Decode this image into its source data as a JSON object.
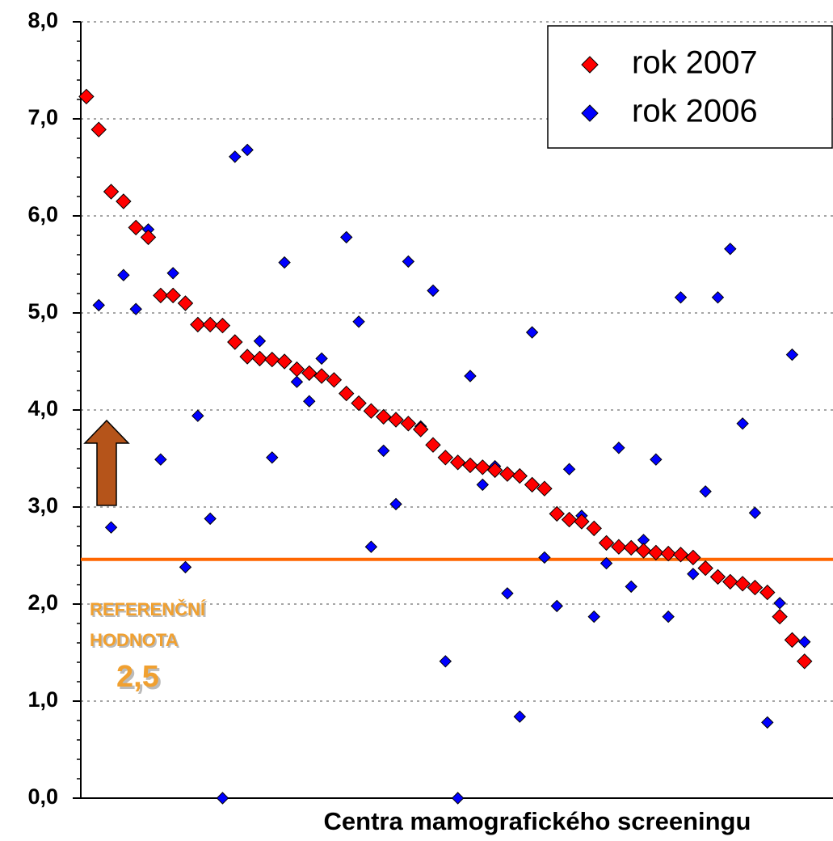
{
  "chart_data": {
    "type": "scatter",
    "x_label": "Centra mamografického screeningu",
    "x": [
      1,
      2,
      3,
      4,
      5,
      6,
      7,
      8,
      9,
      10,
      11,
      12,
      13,
      14,
      15,
      16,
      17,
      18,
      19,
      20,
      21,
      22,
      23,
      24,
      25,
      26,
      27,
      28,
      29,
      30,
      31,
      32,
      33,
      34,
      35,
      36,
      37,
      38,
      39,
      40,
      41,
      42,
      43,
      44,
      45,
      46,
      47,
      48,
      49,
      50,
      51,
      52,
      53,
      54,
      55,
      56,
      57,
      58,
      59
    ],
    "xlim": [
      0.55,
      61.3
    ],
    "ylim": [
      0,
      8
    ],
    "yticks": [
      {
        "value": 0,
        "label": "0,0"
      },
      {
        "value": 1,
        "label": "1,0"
      },
      {
        "value": 2,
        "label": "2,0"
      },
      {
        "value": 3,
        "label": "3,0"
      },
      {
        "value": 4,
        "label": "4,0"
      },
      {
        "value": 5,
        "label": "5,0"
      },
      {
        "value": 6,
        "label": "6,0"
      },
      {
        "value": 7,
        "label": "7,0"
      },
      {
        "value": 8,
        "label": "8,0"
      }
    ],
    "grid": true,
    "legend": "top-right",
    "series": [
      {
        "name": "rok 2007",
        "color": "#ff0000",
        "values": [
          7.23,
          6.89,
          6.25,
          6.15,
          5.88,
          5.78,
          5.18,
          5.18,
          5.1,
          4.88,
          4.88,
          4.87,
          4.7,
          4.55,
          4.53,
          4.52,
          4.5,
          4.42,
          4.38,
          4.35,
          4.31,
          4.17,
          4.07,
          3.99,
          3.93,
          3.9,
          3.86,
          3.8,
          3.64,
          3.51,
          3.46,
          3.43,
          3.41,
          3.38,
          3.34,
          3.32,
          3.23,
          3.19,
          2.93,
          2.87,
          2.85,
          2.78,
          2.63,
          2.59,
          2.58,
          2.55,
          2.53,
          2.52,
          2.51,
          2.48,
          2.37,
          2.28,
          2.23,
          2.21,
          2.17,
          2.12,
          1.87,
          1.63,
          1.41
        ]
      },
      {
        "name": "rok 2006",
        "color": "#0000ff",
        "values": [
          null,
          5.08,
          2.79,
          5.39,
          5.04,
          5.86,
          3.49,
          5.41,
          2.38,
          3.94,
          2.88,
          0.0,
          6.61,
          6.68,
          4.71,
          3.51,
          5.52,
          4.29,
          4.09,
          4.53,
          4.31,
          5.78,
          4.91,
          2.59,
          3.58,
          3.03,
          5.53,
          3.83,
          5.23,
          1.41,
          0.0,
          4.35,
          3.23,
          3.42,
          2.11,
          0.84,
          4.8,
          2.48,
          1.98,
          3.39,
          2.91,
          1.87,
          2.42,
          3.61,
          2.18,
          2.66,
          3.49,
          1.87,
          5.16,
          2.31,
          3.16,
          5.16,
          5.66,
          3.86,
          2.94,
          0.78,
          2.01,
          4.57,
          1.61
        ]
      }
    ],
    "reference_line": {
      "value": 2.46,
      "color": "#ff6600",
      "annotation": [
        "REFERENČNÍ",
        "HODNOTA"
      ],
      "label": "2,5"
    }
  }
}
